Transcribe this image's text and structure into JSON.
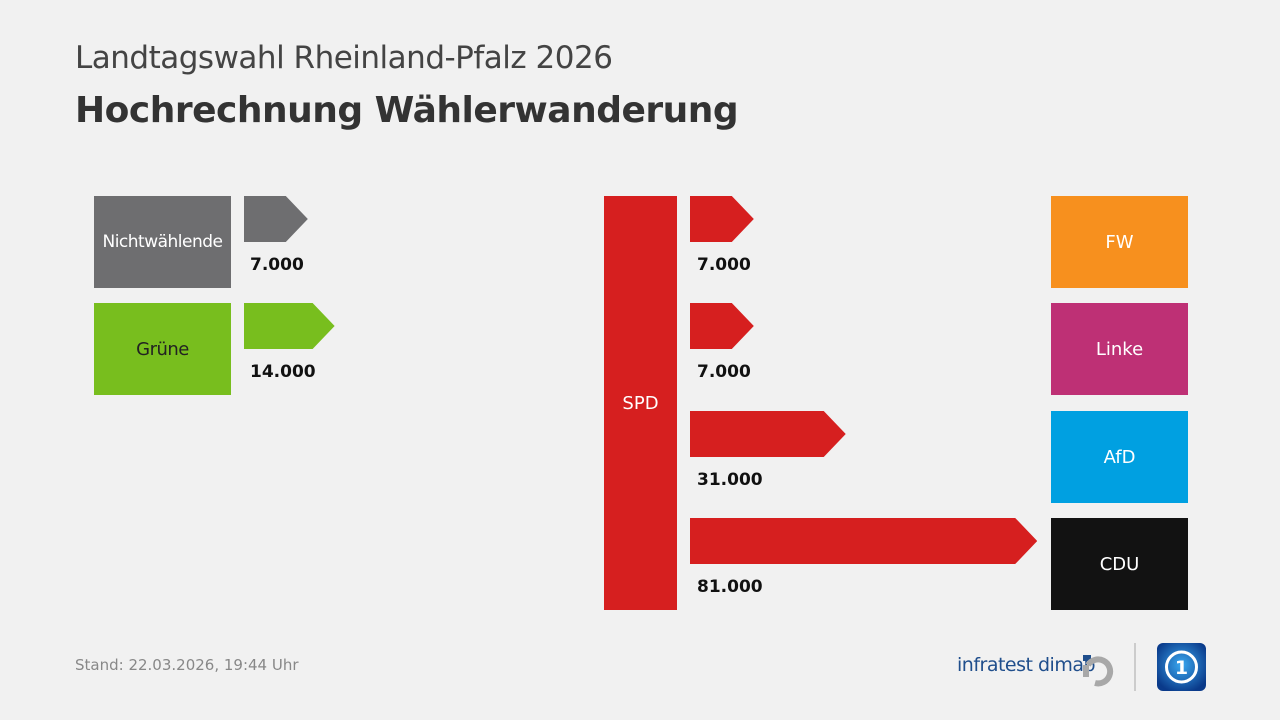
{
  "header": {
    "supertitle": "Landtagswahl Rheinland-Pfalz 2026",
    "title": "Hochrechnung Wählerwanderung"
  },
  "footer": {
    "stand": "Stand:  22.03.2026, 19:44 Uhr",
    "brand": "infratest dimap"
  },
  "chart_data": {
    "type": "flow",
    "left_flows": [
      {
        "from": "Nichtwählende",
        "to": "SPD",
        "value": 7000,
        "label": "7.000",
        "color": "#6e6e70"
      },
      {
        "from": "Grüne",
        "to": "SPD",
        "value": 14000,
        "label": "14.000",
        "color": "#78be1e"
      }
    ],
    "center": {
      "party": "SPD",
      "color": "#d61f1f"
    },
    "right_flows": [
      {
        "from": "SPD",
        "to": "FW",
        "value": 7000,
        "label": "7.000",
        "color": "#f7901e"
      },
      {
        "from": "SPD",
        "to": "Linke",
        "value": 7000,
        "label": "7.000",
        "color": "#be3075"
      },
      {
        "from": "SPD",
        "to": "AfD",
        "value": 31000,
        "label": "31.000",
        "color": "#00a0e1"
      },
      {
        "from": "SPD",
        "to": "CDU",
        "value": 81000,
        "label": "81.000",
        "color": "#121212"
      }
    ],
    "arrow_color": "#d61f1f"
  }
}
